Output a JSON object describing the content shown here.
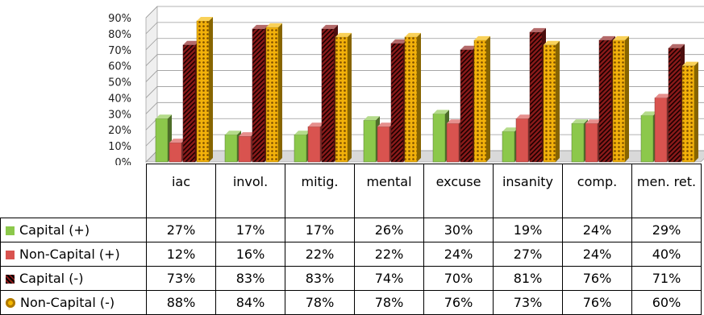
{
  "chart_data": {
    "type": "bar",
    "categories": [
      "iac",
      "invol.",
      "mitig.",
      "mental",
      "excuse",
      "insanity",
      "comp.",
      "men. ret."
    ],
    "ylim": [
      0,
      90
    ],
    "y_ticks": [
      "0%",
      "10%",
      "20%",
      "30%",
      "40%",
      "50%",
      "60%",
      "70%",
      "80%",
      "90%"
    ],
    "grid": true,
    "legend_placement": "data table below chart",
    "style": "3d clustered columns",
    "series": [
      {
        "name": "Capital (+)",
        "values": [
          27,
          17,
          17,
          26,
          30,
          19,
          24,
          29
        ],
        "labels": [
          "27%",
          "17%",
          "17%",
          "26%",
          "30%",
          "19%",
          "24%",
          "29%"
        ],
        "color": "#8cc84b",
        "pattern": "solid"
      },
      {
        "name": "Non-Capital (+)",
        "values": [
          12,
          16,
          22,
          22,
          24,
          27,
          24,
          40
        ],
        "labels": [
          "12%",
          "16%",
          "22%",
          "22%",
          "24%",
          "27%",
          "24%",
          "40%"
        ],
        "color": "#d9534f",
        "pattern": "solid"
      },
      {
        "name": "Capital (-)",
        "values": [
          73,
          83,
          83,
          74,
          70,
          81,
          76,
          71
        ],
        "labels": [
          "73%",
          "83%",
          "83%",
          "74%",
          "70%",
          "81%",
          "76%",
          "71%"
        ],
        "color": "#8b1a1a",
        "pattern": "hatched"
      },
      {
        "name": "Non-Capital (-)",
        "values": [
          88,
          84,
          78,
          78,
          76,
          73,
          76,
          60
        ],
        "labels": [
          "88%",
          "84%",
          "78%",
          "78%",
          "76%",
          "73%",
          "76%",
          "60%"
        ],
        "color": "#f5b800",
        "pattern": "dotted"
      }
    ]
  }
}
